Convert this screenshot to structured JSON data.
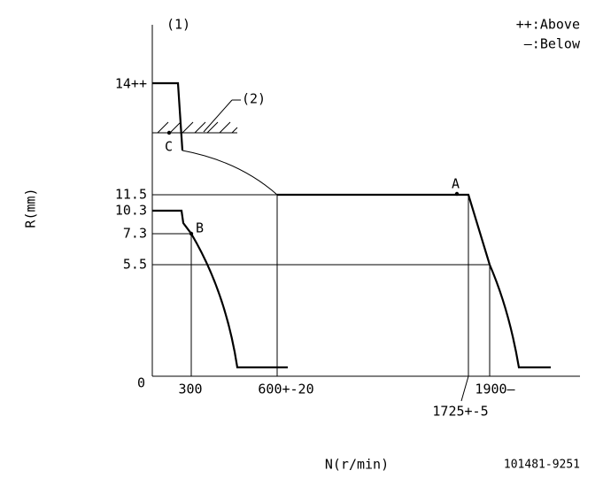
{
  "diagram": {
    "marker_1": "(1)",
    "legend_above": "++:Above",
    "legend_below": "—:Below",
    "marker_2": "(2)",
    "point_a": "A",
    "point_b": "B",
    "point_c": "C",
    "y_labels": [
      "14++",
      "11.5",
      "10.3",
      "7.3",
      "5.5",
      "0"
    ],
    "x_labels": [
      "300",
      "600+-20",
      "1900—",
      "1725+-5"
    ],
    "y_axis_title": "R(mm)",
    "x_axis_title": "N(r/min)",
    "drawing_number": "101481-9251"
  }
}
